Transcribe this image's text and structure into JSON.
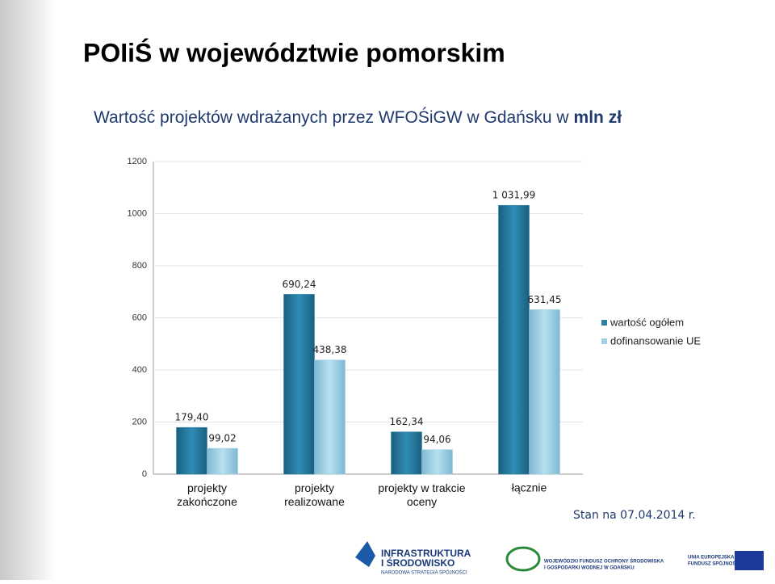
{
  "chart_data": {
    "type": "bar",
    "title": "POIiŚ w województwie pomorskim",
    "subtitle_parts": [
      "Wartość projektów wdrażanych przez WFOŚiGW w Gdańsku w",
      "mln zł"
    ],
    "categories": [
      "projekty zakończone",
      "projekty realizowane",
      "projekty w trakcie oceny",
      "łącznie"
    ],
    "series": [
      {
        "name": "wartość ogółem",
        "color": "#2a7fa3",
        "values": [
          179.4,
          690.24,
          162.34,
          1031.99
        ],
        "value_labels": [
          "179,40",
          "690,24",
          "162,34",
          "1 031,99"
        ]
      },
      {
        "name": "dofinansowanie UE",
        "color": "#9fd0e6",
        "values": [
          99.02,
          438.38,
          94.06,
          631.45
        ],
        "value_labels": [
          "99,02",
          "438,38",
          "94,06",
          "631,45"
        ]
      }
    ],
    "ylim": [
      0,
      1200
    ],
    "yticks": [
      0,
      200,
      400,
      600,
      800,
      1000,
      1200
    ],
    "grid": true,
    "legend": "right",
    "annotation": "Stan na 07.04.2014 r.",
    "logos": {
      "infrastruktura": [
        "INFRASTRUKTURA",
        "I ŚRODOWISKO",
        "NARODOWA STRATEGIA SPÓJNOŚCI"
      ],
      "wfos": [
        "WOJEWÓDZKI FUNDUSZ OCHRONY ŚRODOWISKA",
        "I GOSPODARKI WODNEJ W GDAŃSKU"
      ],
      "ue": [
        "UNIA EUROPEJSKA",
        "FUNDUSZ SPÓJNOŚCI"
      ]
    }
  }
}
